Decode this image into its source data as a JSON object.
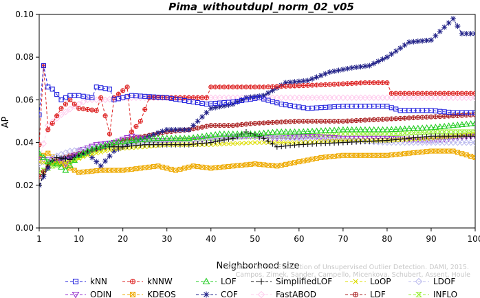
{
  "chart_data": {
    "type": "line",
    "title": "Pima_withoutdupl_norm_02_v05",
    "xlabel": "Neighborhood size",
    "ylabel": "AP",
    "xlim": [
      1,
      100
    ],
    "ylim": [
      0,
      0.1
    ],
    "xticks": [
      1,
      10,
      20,
      30,
      40,
      50,
      60,
      70,
      80,
      90,
      100
    ],
    "yticks": [
      0.0,
      0.02,
      0.04,
      0.06,
      0.08,
      0.1
    ],
    "ytick_labels": [
      "0.00",
      "0.02",
      "0.04",
      "0.06",
      "0.08",
      "0.10"
    ],
    "grid": false,
    "legend_position": "bottom",
    "watermark": [
      "Source: On the Evaluation of Unsupervised Outlier Detection. DAMI, 2015.",
      "Campos, Zimek, Sander, Campello, Micenkova, Schubert, Assent, Houle"
    ],
    "series": [
      {
        "name": "kNN",
        "color": "#2222dd",
        "marker": "square",
        "points": [
          [
            1,
            0.053
          ],
          [
            2,
            0.076
          ],
          [
            3,
            0.066
          ],
          [
            4,
            0.065
          ],
          [
            6,
            0.06
          ],
          [
            8,
            0.062
          ],
          [
            10,
            0.062
          ],
          [
            13,
            0.061
          ],
          [
            14,
            0.066
          ],
          [
            17,
            0.065
          ],
          [
            18,
            0.06
          ],
          [
            22,
            0.062
          ],
          [
            30,
            0.061
          ],
          [
            39,
            0.058
          ],
          [
            45,
            0.059
          ],
          [
            51,
            0.061
          ],
          [
            56,
            0.058
          ],
          [
            62,
            0.056
          ],
          [
            70,
            0.057
          ],
          [
            80,
            0.057
          ],
          [
            83,
            0.055
          ],
          [
            90,
            0.055
          ],
          [
            95,
            0.054
          ],
          [
            100,
            0.054
          ]
        ]
      },
      {
        "name": "kNNW",
        "color": "#dd2222",
        "marker": "circle-plus",
        "points": [
          [
            1,
            0.039
          ],
          [
            2,
            0.076
          ],
          [
            3,
            0.046
          ],
          [
            4,
            0.049
          ],
          [
            6,
            0.056
          ],
          [
            8,
            0.06
          ],
          [
            10,
            0.056
          ],
          [
            14,
            0.055
          ],
          [
            15,
            0.061
          ],
          [
            17,
            0.044
          ],
          [
            18,
            0.061
          ],
          [
            21,
            0.066
          ],
          [
            22,
            0.045
          ],
          [
            24,
            0.05
          ],
          [
            26,
            0.061
          ],
          [
            29,
            0.061
          ],
          [
            39,
            0.061
          ],
          [
            40,
            0.066
          ],
          [
            52,
            0.066
          ],
          [
            65,
            0.067
          ],
          [
            75,
            0.068
          ],
          [
            80,
            0.068
          ],
          [
            81,
            0.063
          ],
          [
            90,
            0.063
          ],
          [
            100,
            0.063
          ]
        ]
      },
      {
        "name": "LOF",
        "color": "#22cc22",
        "marker": "triangle-up",
        "points": [
          [
            1,
            0.035
          ],
          [
            3,
            0.031
          ],
          [
            5,
            0.03
          ],
          [
            7,
            0.027
          ],
          [
            10,
            0.034
          ],
          [
            13,
            0.037
          ],
          [
            18,
            0.04
          ],
          [
            22,
            0.041
          ],
          [
            28,
            0.042
          ],
          [
            35,
            0.042
          ],
          [
            42,
            0.044
          ],
          [
            50,
            0.044
          ],
          [
            55,
            0.045
          ],
          [
            60,
            0.045
          ],
          [
            70,
            0.046
          ],
          [
            80,
            0.046
          ],
          [
            90,
            0.047
          ],
          [
            100,
            0.049
          ]
        ]
      },
      {
        "name": "SimplifiedLOF",
        "color": "#111111",
        "marker": "plus",
        "points": [
          [
            1,
            0.02
          ],
          [
            3,
            0.03
          ],
          [
            5,
            0.033
          ],
          [
            8,
            0.032
          ],
          [
            12,
            0.036
          ],
          [
            16,
            0.038
          ],
          [
            20,
            0.038
          ],
          [
            25,
            0.039
          ],
          [
            30,
            0.039
          ],
          [
            35,
            0.039
          ],
          [
            40,
            0.04
          ],
          [
            45,
            0.042
          ],
          [
            48,
            0.045
          ],
          [
            52,
            0.042
          ],
          [
            55,
            0.038
          ],
          [
            60,
            0.039
          ],
          [
            70,
            0.04
          ],
          [
            80,
            0.041
          ],
          [
            90,
            0.043
          ],
          [
            100,
            0.043
          ]
        ]
      },
      {
        "name": "LoOP",
        "color": "#dddd00",
        "marker": "x",
        "points": [
          [
            1,
            0.031
          ],
          [
            4,
            0.03
          ],
          [
            8,
            0.031
          ],
          [
            12,
            0.034
          ],
          [
            18,
            0.037
          ],
          [
            25,
            0.038
          ],
          [
            30,
            0.039
          ],
          [
            40,
            0.039
          ],
          [
            50,
            0.04
          ],
          [
            60,
            0.04
          ],
          [
            70,
            0.041
          ],
          [
            80,
            0.041
          ],
          [
            90,
            0.042
          ],
          [
            100,
            0.044
          ]
        ]
      },
      {
        "name": "LDOF",
        "color": "#bbbbee",
        "marker": "diamond",
        "points": [
          [
            1,
            0.03
          ],
          [
            4,
            0.033
          ],
          [
            8,
            0.036
          ],
          [
            12,
            0.037
          ],
          [
            18,
            0.039
          ],
          [
            25,
            0.04
          ],
          [
            32,
            0.041
          ],
          [
            40,
            0.042
          ],
          [
            50,
            0.043
          ],
          [
            60,
            0.042
          ],
          [
            70,
            0.041
          ],
          [
            80,
            0.04
          ],
          [
            90,
            0.04
          ],
          [
            100,
            0.04
          ]
        ]
      },
      {
        "name": "ODIN",
        "color": "#9933cc",
        "marker": "triangle-down",
        "points": [
          [
            1,
            0.032
          ],
          [
            4,
            0.032
          ],
          [
            7,
            0.03
          ],
          [
            10,
            0.036
          ],
          [
            14,
            0.039
          ],
          [
            18,
            0.04
          ],
          [
            22,
            0.043
          ],
          [
            26,
            0.041
          ],
          [
            30,
            0.041
          ],
          [
            36,
            0.041
          ],
          [
            42,
            0.042
          ],
          [
            48,
            0.043
          ],
          [
            55,
            0.042
          ],
          [
            62,
            0.043
          ],
          [
            70,
            0.042
          ],
          [
            80,
            0.042
          ],
          [
            90,
            0.041
          ],
          [
            100,
            0.043
          ]
        ]
      },
      {
        "name": "KDEOS",
        "color": "#eeaa00",
        "marker": "square-x",
        "points": [
          [
            1,
            0.033
          ],
          [
            3,
            0.035
          ],
          [
            6,
            0.03
          ],
          [
            10,
            0.026
          ],
          [
            15,
            0.027
          ],
          [
            20,
            0.027
          ],
          [
            24,
            0.028
          ],
          [
            28,
            0.029
          ],
          [
            32,
            0.027
          ],
          [
            36,
            0.029
          ],
          [
            40,
            0.028
          ],
          [
            45,
            0.029
          ],
          [
            50,
            0.03
          ],
          [
            55,
            0.029
          ],
          [
            60,
            0.031
          ],
          [
            65,
            0.033
          ],
          [
            70,
            0.034
          ],
          [
            80,
            0.034
          ],
          [
            90,
            0.036
          ],
          [
            95,
            0.036
          ],
          [
            100,
            0.033
          ]
        ]
      },
      {
        "name": "COF",
        "color": "#222288",
        "marker": "asterisk",
        "points": [
          [
            1,
            0.02
          ],
          [
            4,
            0.032
          ],
          [
            8,
            0.033
          ],
          [
            12,
            0.035
          ],
          [
            15,
            0.029
          ],
          [
            18,
            0.036
          ],
          [
            22,
            0.04
          ],
          [
            26,
            0.043
          ],
          [
            30,
            0.046
          ],
          [
            35,
            0.046
          ],
          [
            40,
            0.056
          ],
          [
            45,
            0.058
          ],
          [
            48,
            0.061
          ],
          [
            52,
            0.062
          ],
          [
            57,
            0.068
          ],
          [
            62,
            0.069
          ],
          [
            67,
            0.073
          ],
          [
            72,
            0.075
          ],
          [
            76,
            0.076
          ],
          [
            80,
            0.08
          ],
          [
            85,
            0.087
          ],
          [
            90,
            0.088
          ],
          [
            95,
            0.098
          ],
          [
            97,
            0.091
          ],
          [
            100,
            0.091
          ]
        ]
      },
      {
        "name": "FastABOD",
        "color": "#ffccee",
        "marker": "diamond",
        "points": [
          [
            1,
            0.031
          ],
          [
            3,
            0.048
          ],
          [
            6,
            0.053
          ],
          [
            9,
            0.057
          ],
          [
            12,
            0.06
          ],
          [
            16,
            0.06
          ],
          [
            20,
            0.061
          ],
          [
            30,
            0.061
          ],
          [
            40,
            0.061
          ],
          [
            50,
            0.061
          ],
          [
            60,
            0.061
          ],
          [
            70,
            0.061
          ],
          [
            80,
            0.061
          ],
          [
            90,
            0.061
          ],
          [
            100,
            0.061
          ]
        ]
      },
      {
        "name": "LDF",
        "color": "#aa2222",
        "marker": "circle-plus",
        "points": [
          [
            1,
            0.024
          ],
          [
            4,
            0.031
          ],
          [
            8,
            0.034
          ],
          [
            12,
            0.036
          ],
          [
            16,
            0.038
          ],
          [
            20,
            0.041
          ],
          [
            25,
            0.043
          ],
          [
            30,
            0.045
          ],
          [
            35,
            0.046
          ],
          [
            40,
            0.048
          ],
          [
            45,
            0.048
          ],
          [
            50,
            0.049
          ],
          [
            60,
            0.05
          ],
          [
            70,
            0.05
          ],
          [
            80,
            0.051
          ],
          [
            90,
            0.052
          ],
          [
            100,
            0.053
          ]
        ]
      },
      {
        "name": "INFLO",
        "color": "#99ee33",
        "marker": "hourglass",
        "points": [
          [
            1,
            0.026
          ],
          [
            4,
            0.029
          ],
          [
            8,
            0.031
          ],
          [
            12,
            0.035
          ],
          [
            18,
            0.039
          ],
          [
            25,
            0.041
          ],
          [
            30,
            0.041
          ],
          [
            40,
            0.042
          ],
          [
            50,
            0.043
          ],
          [
            60,
            0.043
          ],
          [
            70,
            0.044
          ],
          [
            80,
            0.044
          ],
          [
            90,
            0.045
          ],
          [
            100,
            0.045
          ]
        ]
      }
    ]
  }
}
